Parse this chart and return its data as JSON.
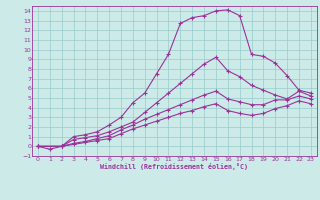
{
  "xlabel": "Windchill (Refroidissement éolien,°C)",
  "xlim": [
    -0.5,
    23.5
  ],
  "ylim": [
    -1,
    14.5
  ],
  "xticks": [
    0,
    1,
    2,
    3,
    4,
    5,
    6,
    7,
    8,
    9,
    10,
    11,
    12,
    13,
    14,
    15,
    16,
    17,
    18,
    19,
    20,
    21,
    22,
    23
  ],
  "yticks": [
    -1,
    0,
    1,
    2,
    3,
    4,
    5,
    6,
    7,
    8,
    9,
    10,
    11,
    12,
    13,
    14
  ],
  "bg_color": "#cceae8",
  "line_color": "#993399",
  "grid_color": "#99cccc",
  "curves": [
    {
      "x": [
        0,
        1,
        2,
        3,
        4,
        5,
        6,
        7,
        8,
        9,
        10,
        11,
        12,
        13,
        14,
        15,
        16,
        17,
        18,
        19,
        20,
        21,
        22,
        23
      ],
      "y": [
        0,
        -0.3,
        0.0,
        1.0,
        1.2,
        1.5,
        2.2,
        3.0,
        4.5,
        5.5,
        7.5,
        9.5,
        12.7,
        13.3,
        13.5,
        14.0,
        14.1,
        13.5,
        9.5,
        9.3,
        8.6,
        7.3,
        5.8,
        5.5
      ]
    },
    {
      "x": [
        0,
        2,
        3,
        4,
        5,
        6,
        7,
        8,
        9,
        10,
        11,
        12,
        13,
        14,
        15,
        16,
        17,
        18,
        19,
        20,
        21,
        22,
        23
      ],
      "y": [
        0,
        0.0,
        0.7,
        0.9,
        1.1,
        1.5,
        2.0,
        2.5,
        3.5,
        4.5,
        5.5,
        6.5,
        7.5,
        8.5,
        9.2,
        7.8,
        7.2,
        6.3,
        5.8,
        5.3,
        4.9,
        5.7,
        5.2
      ]
    },
    {
      "x": [
        0,
        2,
        3,
        4,
        5,
        6,
        7,
        8,
        9,
        10,
        11,
        12,
        13,
        14,
        15,
        16,
        17,
        18,
        19,
        20,
        21,
        22,
        23
      ],
      "y": [
        0,
        0.0,
        0.3,
        0.5,
        0.8,
        1.1,
        1.7,
        2.2,
        2.8,
        3.3,
        3.8,
        4.3,
        4.8,
        5.3,
        5.7,
        4.9,
        4.6,
        4.3,
        4.3,
        4.8,
        4.8,
        5.2,
        4.9
      ]
    },
    {
      "x": [
        0,
        2,
        3,
        4,
        5,
        6,
        7,
        8,
        9,
        10,
        11,
        12,
        13,
        14,
        15,
        16,
        17,
        18,
        19,
        20,
        21,
        22,
        23
      ],
      "y": [
        0,
        0.0,
        0.2,
        0.4,
        0.6,
        0.8,
        1.3,
        1.8,
        2.2,
        2.6,
        3.0,
        3.4,
        3.7,
        4.1,
        4.4,
        3.7,
        3.4,
        3.2,
        3.4,
        3.9,
        4.2,
        4.7,
        4.4
      ]
    }
  ]
}
